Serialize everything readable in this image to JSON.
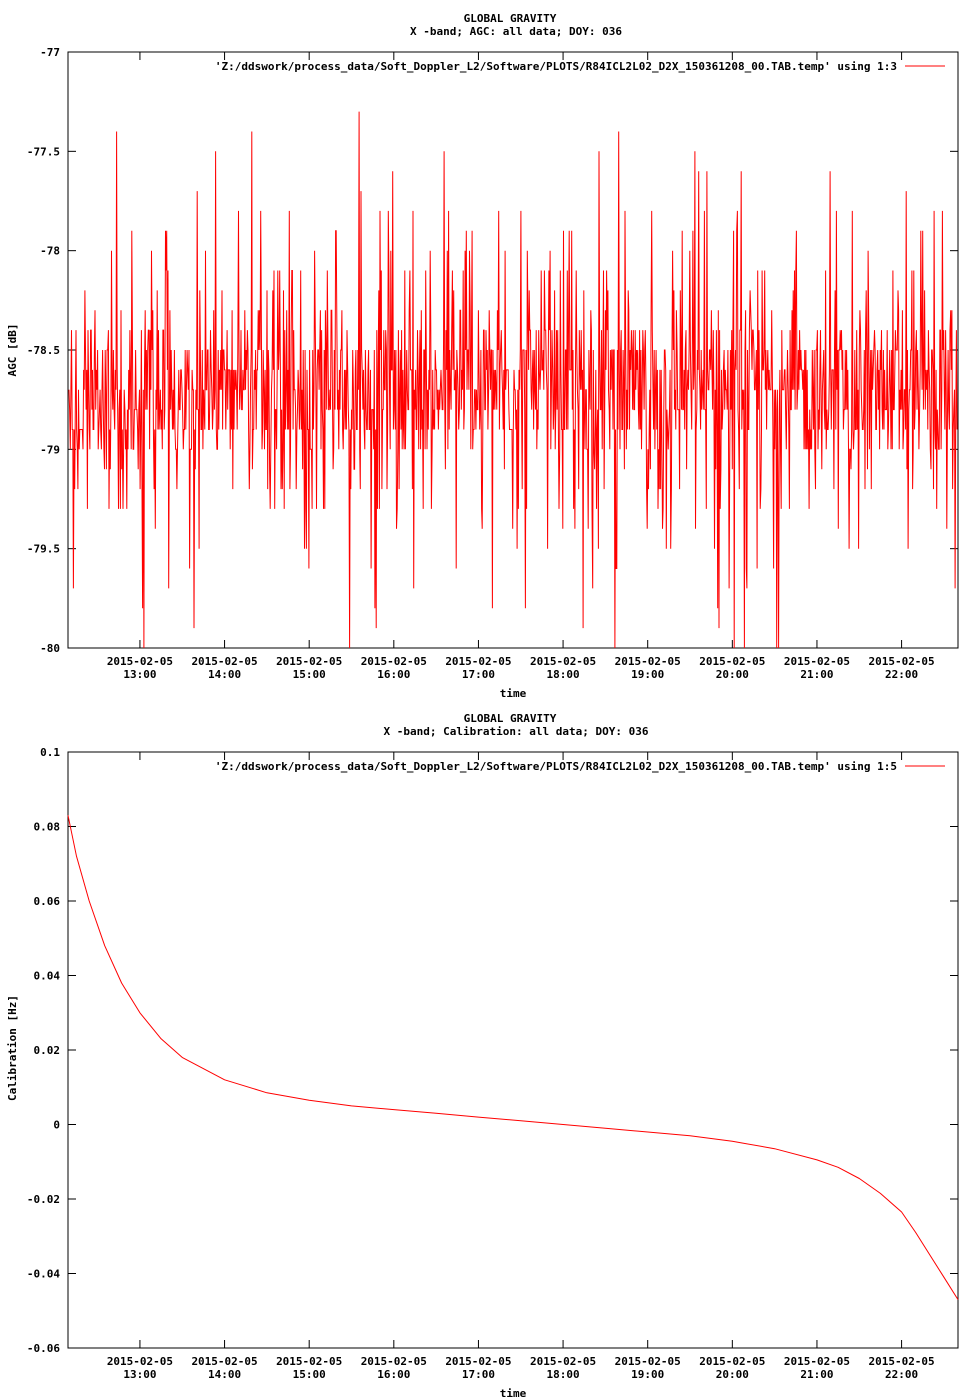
{
  "chart_data": [
    {
      "type": "line",
      "title": "GLOBAL GRAVITY",
      "subtitle": "X -band; AGC: all data; DOY: 036",
      "xlabel": "time",
      "ylabel": "AGC [dB]",
      "ylim": [
        -80,
        -77
      ],
      "yticks": [
        -77,
        -77.5,
        -78,
        -78.5,
        -79,
        -79.5,
        -80
      ],
      "xlim": [
        "2015-02-05 12:09",
        "2015-02-05 22:40"
      ],
      "xtick_dates": [
        "2015-02-05",
        "2015-02-05",
        "2015-02-05",
        "2015-02-05",
        "2015-02-05",
        "2015-02-05",
        "2015-02-05",
        "2015-02-05",
        "2015-02-05",
        "2015-02-05"
      ],
      "xtick_times": [
        "13:00",
        "14:00",
        "15:00",
        "16:00",
        "17:00",
        "18:00",
        "19:00",
        "20:00",
        "21:00",
        "22:00"
      ],
      "grid": false,
      "legend_position": "top-right",
      "series": [
        {
          "name": "'Z:/ddswork/process_data/Soft_Doppler_L2/Software/PLOTS/R84ICL2L02_D2X_150361208_00.TAB.temp' using 1:3",
          "color": "#ff0000",
          "summary": {
            "mean": -78.7,
            "typical_range": [
              -79.0,
              -78.4
            ],
            "min": -80.0,
            "max": -77.3
          },
          "values_from_13_00_step_1h": [
            -78.7,
            -78.65,
            -78.7,
            -78.75,
            -78.7,
            -78.7,
            -78.7,
            -78.65,
            -78.65,
            -78.7,
            -78.7
          ]
        }
      ]
    },
    {
      "type": "line",
      "title": "GLOBAL GRAVITY",
      "subtitle": "X -band; Calibration: all data; DOY: 036",
      "xlabel": "time",
      "ylabel": "Calibration [Hz]",
      "ylim": [
        -0.06,
        0.1
      ],
      "yticks": [
        0.1,
        0.08,
        0.06,
        0.04,
        0.02,
        0,
        -0.02,
        -0.04,
        -0.06
      ],
      "xlim": [
        "2015-02-05 12:09",
        "2015-02-05 22:40"
      ],
      "xtick_dates": [
        "2015-02-05",
        "2015-02-05",
        "2015-02-05",
        "2015-02-05",
        "2015-02-05",
        "2015-02-05",
        "2015-02-05",
        "2015-02-05",
        "2015-02-05",
        "2015-02-05"
      ],
      "xtick_times": [
        "13:00",
        "14:00",
        "15:00",
        "16:00",
        "17:00",
        "18:00",
        "19:00",
        "20:00",
        "21:00",
        "22:00"
      ],
      "grid": false,
      "legend_position": "top-right",
      "series": [
        {
          "name": "'Z:/ddswork/process_data/Soft_Doppler_L2/Software/PLOTS/R84ICL2L02_D2X_150361208_00.TAB.temp' using 1:5",
          "color": "#ff0000",
          "points": [
            [
              "2015-02-05 12:09",
              0.083
            ],
            [
              "2015-02-05 12:15",
              0.072
            ],
            [
              "2015-02-05 12:24",
              0.06
            ],
            [
              "2015-02-05 12:35",
              0.048
            ],
            [
              "2015-02-05 12:47",
              0.038
            ],
            [
              "2015-02-05 13:00",
              0.03
            ],
            [
              "2015-02-05 13:15",
              0.023
            ],
            [
              "2015-02-05 13:30",
              0.018
            ],
            [
              "2015-02-05 14:00",
              0.012
            ],
            [
              "2015-02-05 14:30",
              0.0085
            ],
            [
              "2015-02-05 15:00",
              0.0065
            ],
            [
              "2015-02-05 15:30",
              0.005
            ],
            [
              "2015-02-05 16:00",
              0.004
            ],
            [
              "2015-02-05 16:30",
              0.003
            ],
            [
              "2015-02-05 17:00",
              0.002
            ],
            [
              "2015-02-05 17:30",
              0.001
            ],
            [
              "2015-02-05 18:00",
              0.0
            ],
            [
              "2015-02-05 18:30",
              -0.001
            ],
            [
              "2015-02-05 19:00",
              -0.002
            ],
            [
              "2015-02-05 19:30",
              -0.003
            ],
            [
              "2015-02-05 20:00",
              -0.0045
            ],
            [
              "2015-02-05 20:30",
              -0.0065
            ],
            [
              "2015-02-05 21:00",
              -0.0095
            ],
            [
              "2015-02-05 21:15",
              -0.0115
            ],
            [
              "2015-02-05 21:30",
              -0.0145
            ],
            [
              "2015-02-05 21:45",
              -0.0185
            ],
            [
              "2015-02-05 22:00",
              -0.0235
            ],
            [
              "2015-02-05 22:10",
              -0.029
            ],
            [
              "2015-02-05 22:20",
              -0.035
            ],
            [
              "2015-02-05 22:30",
              -0.041
            ],
            [
              "2015-02-05 22:40",
              -0.047
            ]
          ]
        }
      ]
    }
  ]
}
